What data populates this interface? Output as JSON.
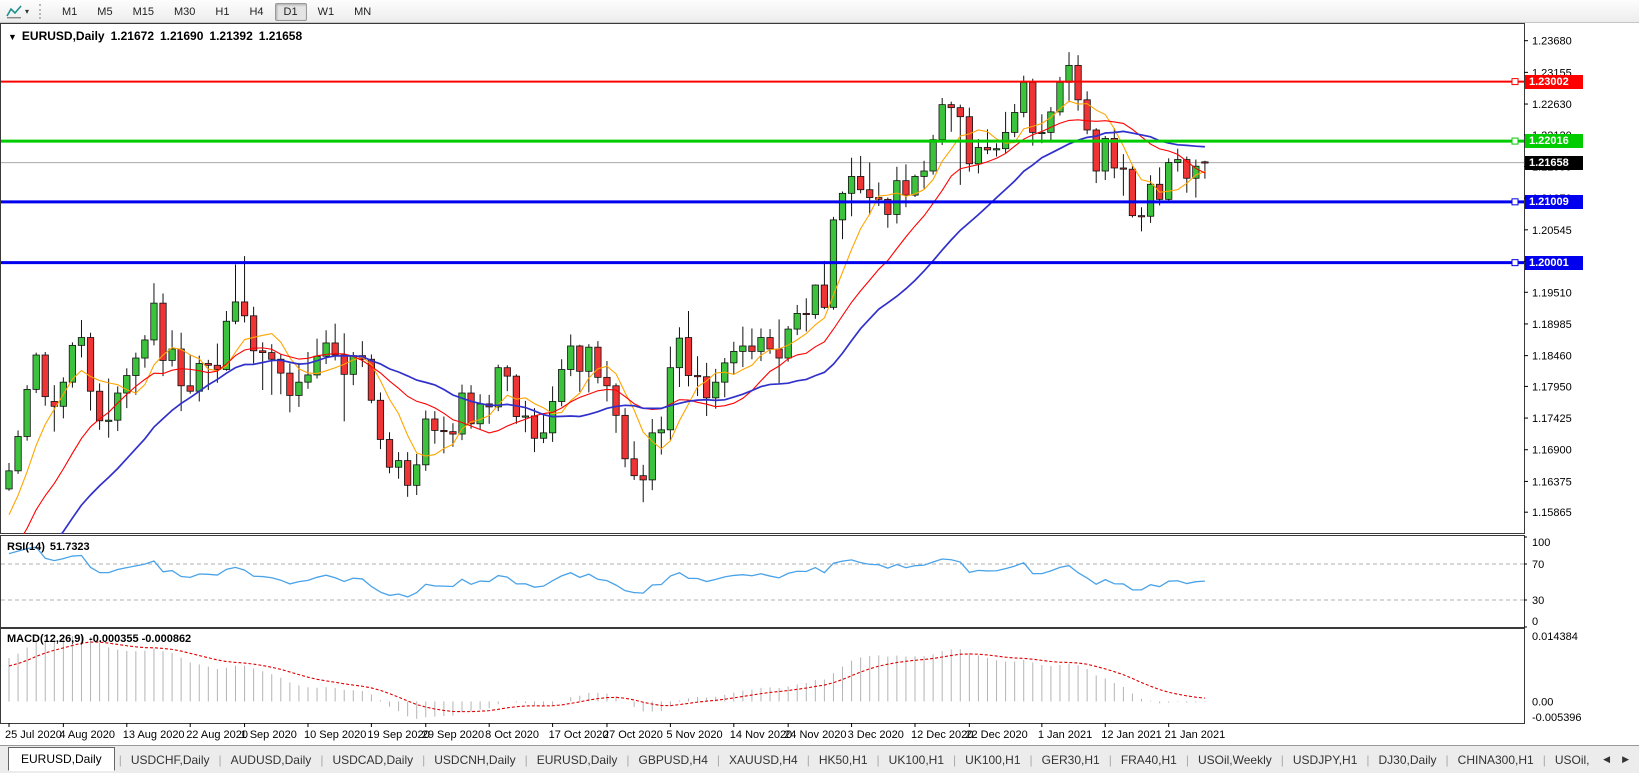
{
  "glyphs": {
    "title_caret": "▼",
    "toolbar_caret": "▾",
    "scroll_left": "◀",
    "scroll_right": "▶",
    "tab_sep": "|"
  },
  "toolbar": {
    "timeframes": [
      {
        "label": "M1",
        "active": false
      },
      {
        "label": "M5",
        "active": false
      },
      {
        "label": "M15",
        "active": false
      },
      {
        "label": "M30",
        "active": false
      },
      {
        "label": "H1",
        "active": false
      },
      {
        "label": "H4",
        "active": false
      },
      {
        "label": "D1",
        "active": true
      },
      {
        "label": "W1",
        "active": false
      },
      {
        "label": "MN",
        "active": false
      }
    ]
  },
  "chart": {
    "title": {
      "symbol": "EURUSD,Daily",
      "open": "1.21672",
      "high": "1.21690",
      "low": "1.21392",
      "close": "1.21658"
    },
    "colors": {
      "up": "#3dc23d",
      "down": "#ee3434",
      "outline": "#111111",
      "current_line": "#aaaaaa"
    },
    "price_axis": {
      "ticks": [
        "1.23680",
        "1.23155",
        "1.22630",
        "1.22120",
        "1.21595",
        "1.21070",
        "1.20545",
        "1.20020",
        "1.19510",
        "1.18985",
        "1.18460",
        "1.17950",
        "1.17425",
        "1.16900",
        "1.16375",
        "1.15865"
      ],
      "current": {
        "value": "1.21658",
        "color": "#000000"
      }
    },
    "hlines": [
      {
        "price": 1.23002,
        "label": "1.23002",
        "color": "#ff0000",
        "width": 2
      },
      {
        "price": 1.22016,
        "label": "1.22016",
        "color": "#00cc00",
        "width": 3
      },
      {
        "price": 1.21009,
        "label": "1.21009",
        "color": "#0000ee",
        "width": 3
      },
      {
        "price": 1.20001,
        "label": "1.20001",
        "color": "#0000ee",
        "width": 3
      }
    ],
    "mas": [
      {
        "period": 6,
        "color": "#ffa500",
        "width": 1.1
      },
      {
        "period": 14,
        "color": "#ff0000",
        "width": 1.1
      },
      {
        "period": 24,
        "color": "#3030cc",
        "width": 1.7
      }
    ],
    "ma_warmup": [
      1.116,
      1.1172,
      1.1158,
      1.1181,
      1.1169,
      1.1192,
      1.1178,
      1.12,
      1.1188,
      1.121,
      1.1196,
      1.1218,
      1.1205,
      1.1226,
      1.1212,
      1.1234,
      1.1221,
      1.1242,
      1.123,
      1.1251,
      1.1238,
      1.1259,
      1.1246,
      1.1267,
      1.1255,
      1.1275,
      1.1262,
      1.1283,
      1.127,
      1.129,
      1.1278,
      1.1298,
      1.1285,
      1.1305,
      1.1292,
      1.1311,
      1.1299,
      1.1316,
      1.1305,
      1.1322,
      1.13,
      1.132,
      1.1342,
      1.133,
      1.136,
      1.1385,
      1.1372,
      1.1405,
      1.143,
      1.1418,
      1.145,
      1.1478,
      1.1465,
      1.1502,
      1.153,
      1.1518,
      1.1555,
      1.1585,
      1.157,
      1.161
    ],
    "candles": [
      [
        1.1625,
        1.1668,
        1.1622,
        1.1655
      ],
      [
        1.1655,
        1.1722,
        1.165,
        1.1712
      ],
      [
        1.1712,
        1.1797,
        1.1705,
        1.179
      ],
      [
        1.179,
        1.1851,
        1.1784,
        1.1847
      ],
      [
        1.1847,
        1.1852,
        1.1763,
        1.1778
      ],
      [
        1.177,
        1.1797,
        1.172,
        1.1762
      ],
      [
        1.1762,
        1.181,
        1.1742,
        1.1802
      ],
      [
        1.1802,
        1.1868,
        1.1793,
        1.1863
      ],
      [
        1.1863,
        1.1905,
        1.1843,
        1.1876
      ],
      [
        1.1876,
        1.1884,
        1.1755,
        1.1787
      ],
      [
        1.1787,
        1.18,
        1.1723,
        1.1738
      ],
      [
        1.1738,
        1.1808,
        1.171,
        1.1739
      ],
      [
        1.1739,
        1.1795,
        1.1721,
        1.1784
      ],
      [
        1.1784,
        1.1825,
        1.1759,
        1.1813
      ],
      [
        1.1813,
        1.1851,
        1.1781,
        1.1842
      ],
      [
        1.1842,
        1.188,
        1.1826,
        1.1872
      ],
      [
        1.1872,
        1.1966,
        1.1863,
        1.1933
      ],
      [
        1.1933,
        1.1949,
        1.1812,
        1.1838
      ],
      [
        1.1838,
        1.1888,
        1.1828,
        1.1857
      ],
      [
        1.1857,
        1.1884,
        1.1754,
        1.1796
      ],
      [
        1.1796,
        1.1848,
        1.1783,
        1.1787
      ],
      [
        1.1787,
        1.1846,
        1.177,
        1.1833
      ],
      [
        1.1833,
        1.1839,
        1.1789,
        1.183
      ],
      [
        1.183,
        1.1866,
        1.1801,
        1.1823
      ],
      [
        1.1823,
        1.192,
        1.1821,
        1.1903
      ],
      [
        1.1903,
        1.1997,
        1.1898,
        1.1935
      ],
      [
        1.1935,
        1.2011,
        1.1901,
        1.1912
      ],
      [
        1.1912,
        1.1927,
        1.1833,
        1.1854
      ],
      [
        1.1854,
        1.1868,
        1.1789,
        1.1851
      ],
      [
        1.1851,
        1.1865,
        1.1781,
        1.184
      ],
      [
        1.184,
        1.1848,
        1.1782,
        1.1817
      ],
      [
        1.1817,
        1.1833,
        1.1752,
        1.178
      ],
      [
        1.178,
        1.1834,
        1.1761,
        1.1802
      ],
      [
        1.1802,
        1.1852,
        1.1791,
        1.1814
      ],
      [
        1.1814,
        1.1874,
        1.1808,
        1.1845
      ],
      [
        1.1845,
        1.1888,
        1.1832,
        1.1867
      ],
      [
        1.1867,
        1.1899,
        1.1838,
        1.1847
      ],
      [
        1.1847,
        1.1883,
        1.1737,
        1.1815
      ],
      [
        1.1815,
        1.1852,
        1.1797,
        1.1846
      ],
      [
        1.1846,
        1.187,
        1.1827,
        1.184
      ],
      [
        1.184,
        1.1848,
        1.1767,
        1.1772
      ],
      [
        1.1772,
        1.1785,
        1.1691,
        1.1707
      ],
      [
        1.1707,
        1.1719,
        1.1651,
        1.1661
      ],
      [
        1.1661,
        1.1686,
        1.1642,
        1.1672
      ],
      [
        1.1672,
        1.1686,
        1.1612,
        1.1631
      ],
      [
        1.1631,
        1.1683,
        1.1615,
        1.1665
      ],
      [
        1.1665,
        1.1755,
        1.1655,
        1.1741
      ],
      [
        1.1741,
        1.1754,
        1.17,
        1.1722
      ],
      [
        1.1722,
        1.1745,
        1.1684,
        1.172
      ],
      [
        1.172,
        1.1734,
        1.1695,
        1.1716
      ],
      [
        1.1716,
        1.1798,
        1.1706,
        1.1784
      ],
      [
        1.1784,
        1.1797,
        1.1725,
        1.1733
      ],
      [
        1.1733,
        1.1782,
        1.1724,
        1.1766
      ],
      [
        1.1766,
        1.1781,
        1.1733,
        1.1761
      ],
      [
        1.1761,
        1.1831,
        1.1754,
        1.1826
      ],
      [
        1.1826,
        1.183,
        1.1787,
        1.1812
      ],
      [
        1.1812,
        1.1815,
        1.1733,
        1.1745
      ],
      [
        1.1745,
        1.1771,
        1.1719,
        1.1746
      ],
      [
        1.1746,
        1.1759,
        1.1686,
        1.1709
      ],
      [
        1.1709,
        1.1747,
        1.1701,
        1.1718
      ],
      [
        1.1718,
        1.1795,
        1.1703,
        1.177
      ],
      [
        1.177,
        1.184,
        1.1762,
        1.1823
      ],
      [
        1.1823,
        1.1881,
        1.1812,
        1.1862
      ],
      [
        1.1862,
        1.1864,
        1.1786,
        1.182
      ],
      [
        1.182,
        1.1865,
        1.1785,
        1.186
      ],
      [
        1.186,
        1.187,
        1.18,
        1.181
      ],
      [
        1.181,
        1.1837,
        1.177,
        1.1796
      ],
      [
        1.1796,
        1.18,
        1.1718,
        1.1747
      ],
      [
        1.1747,
        1.1759,
        1.1661,
        1.1675
      ],
      [
        1.1675,
        1.1704,
        1.164,
        1.1647
      ],
      [
        1.1647,
        1.1665,
        1.1603,
        1.164
      ],
      [
        1.164,
        1.1741,
        1.1623,
        1.1718
      ],
      [
        1.1718,
        1.1745,
        1.1682,
        1.1723
      ],
      [
        1.1723,
        1.1861,
        1.1706,
        1.1826
      ],
      [
        1.1826,
        1.1893,
        1.1794,
        1.1875
      ],
      [
        1.1876,
        1.192,
        1.1795,
        1.1813
      ],
      [
        1.1813,
        1.1845,
        1.1779,
        1.1811
      ],
      [
        1.1811,
        1.1834,
        1.1746,
        1.1776
      ],
      [
        1.1776,
        1.1824,
        1.1758,
        1.1802
      ],
      [
        1.1802,
        1.1842,
        1.1777,
        1.1834
      ],
      [
        1.1834,
        1.1869,
        1.1815,
        1.1853
      ],
      [
        1.1853,
        1.1894,
        1.1827,
        1.1862
      ],
      [
        1.1862,
        1.1891,
        1.184,
        1.1853
      ],
      [
        1.1853,
        1.1891,
        1.1837,
        1.1876
      ],
      [
        1.1876,
        1.189,
        1.1849,
        1.1857
      ],
      [
        1.1857,
        1.1906,
        1.18,
        1.1842
      ],
      [
        1.1842,
        1.1895,
        1.1836,
        1.189
      ],
      [
        1.189,
        1.193,
        1.188,
        1.1916
      ],
      [
        1.1916,
        1.1941,
        1.1886,
        1.1914
      ],
      [
        1.1914,
        1.1964,
        1.1907,
        1.1963
      ],
      [
        1.1963,
        1.2003,
        1.1923,
        1.1926
      ],
      [
        1.1926,
        1.2076,
        1.1922,
        1.2071
      ],
      [
        1.2071,
        1.2118,
        1.2039,
        1.2115
      ],
      [
        1.2115,
        1.2174,
        1.2077,
        1.2143
      ],
      [
        1.2143,
        1.2177,
        1.2115,
        1.2121
      ],
      [
        1.2121,
        1.2166,
        1.2079,
        1.2108
      ],
      [
        1.2108,
        1.2133,
        1.2094,
        1.2105
      ],
      [
        1.2105,
        1.2108,
        1.2058,
        1.208
      ],
      [
        1.208,
        1.2159,
        1.2065,
        1.2136
      ],
      [
        1.2136,
        1.2163,
        1.2092,
        1.2112
      ],
      [
        1.2112,
        1.2146,
        1.2109,
        1.2143
      ],
      [
        1.2143,
        1.2169,
        1.2123,
        1.2152
      ],
      [
        1.2152,
        1.2212,
        1.2146,
        1.2204
      ],
      [
        1.2204,
        1.2273,
        1.2195,
        1.2262
      ],
      [
        1.2262,
        1.2267,
        1.2217,
        1.2257
      ],
      [
        1.2257,
        1.2262,
        1.2129,
        1.2242
      ],
      [
        1.2242,
        1.2257,
        1.2151,
        1.2164
      ],
      [
        1.2164,
        1.2205,
        1.2148,
        1.2191
      ],
      [
        1.2191,
        1.2221,
        1.218,
        1.2187
      ],
      [
        1.2187,
        1.2198,
        1.2176,
        1.2189
      ],
      [
        1.2189,
        1.225,
        1.2181,
        1.2216
      ],
      [
        1.2216,
        1.2263,
        1.2208,
        1.2249
      ],
      [
        1.2249,
        1.231,
        1.2241,
        1.2299
      ],
      [
        1.2299,
        1.2305,
        1.2194,
        1.2216
      ],
      [
        1.2216,
        1.2246,
        1.2198,
        1.2216
      ],
      [
        1.2216,
        1.2258,
        1.2203,
        1.225
      ],
      [
        1.225,
        1.2308,
        1.2244,
        1.2299
      ],
      [
        1.2299,
        1.2349,
        1.2266,
        1.2327
      ],
      [
        1.2327,
        1.2344,
        1.2252,
        1.227
      ],
      [
        1.227,
        1.2284,
        1.2213,
        1.222
      ],
      [
        1.222,
        1.2223,
        1.2132,
        1.2152
      ],
      [
        1.2152,
        1.221,
        1.2137,
        1.2206
      ],
      [
        1.2206,
        1.2223,
        1.214,
        1.2157
      ],
      [
        1.2157,
        1.218,
        1.2111,
        1.2155
      ],
      [
        1.2155,
        1.216,
        1.2075,
        1.2078
      ],
      [
        1.2078,
        1.2092,
        1.2052,
        1.2077
      ],
      [
        1.2077,
        1.2145,
        1.2066,
        1.213
      ],
      [
        1.213,
        1.2158,
        1.2095,
        1.2105
      ],
      [
        1.2105,
        1.2173,
        1.2103,
        1.2166
      ],
      [
        1.2166,
        1.2189,
        1.2151,
        1.2171
      ],
      [
        1.2171,
        1.2176,
        1.2116,
        1.214
      ],
      [
        1.214,
        1.2171,
        1.2108,
        1.216
      ],
      [
        1.21672,
        1.2169,
        1.21392,
        1.21658
      ]
    ],
    "date_ticks": [
      {
        "label": "25 Jul 2020",
        "bar": 0
      },
      {
        "label": "4 Aug 2020",
        "bar": 6
      },
      {
        "label": "13 Aug 2020",
        "bar": 13
      },
      {
        "label": "22 Aug 2020",
        "bar": 20
      },
      {
        "label": "1 Sep 2020",
        "bar": 26
      },
      {
        "label": "10 Sep 2020",
        "bar": 33
      },
      {
        "label": "19 Sep 2020",
        "bar": 40
      },
      {
        "label": "29 Sep 2020",
        "bar": 46
      },
      {
        "label": "8 Oct 2020",
        "bar": 53
      },
      {
        "label": "17 Oct 2020",
        "bar": 60
      },
      {
        "label": "27 Oct 2020",
        "bar": 66
      },
      {
        "label": "5 Nov 2020",
        "bar": 73
      },
      {
        "label": "14 Nov 2020",
        "bar": 80
      },
      {
        "label": "24 Nov 2020",
        "bar": 86
      },
      {
        "label": "3 Dec 2020",
        "bar": 93
      },
      {
        "label": "12 Dec 2020",
        "bar": 100
      },
      {
        "label": "22 Dec 2020",
        "bar": 106
      },
      {
        "label": "1 Jan 2021",
        "bar": 114
      },
      {
        "label": "12 Jan 2021",
        "bar": 121
      },
      {
        "label": "21 Jan 2021",
        "bar": 128
      }
    ]
  },
  "rsi": {
    "label": "RSI(14)",
    "value": "51.7323",
    "period": 14,
    "color": "#4aa3e8",
    "levels": [
      70,
      30
    ],
    "axis": [
      "100",
      "70",
      "30",
      "0"
    ]
  },
  "macd": {
    "label": "MACD(12,26,9)",
    "values": "-0.000355 -0.000862",
    "fast": 12,
    "slow": 26,
    "signal": 9,
    "axis_max": "0.014384",
    "axis_zero": "0.00",
    "axis_min": "-0.005396",
    "hist_color": "#b4b4b4",
    "signal_color": "#e00000"
  },
  "tabs": {
    "items": [
      {
        "label": "EURUSD,Daily",
        "active": true
      },
      {
        "label": "USDCHF,Daily",
        "active": false
      },
      {
        "label": "AUDUSD,Daily",
        "active": false
      },
      {
        "label": "USDCAD,Daily",
        "active": false
      },
      {
        "label": "USDCNH,Daily",
        "active": false
      },
      {
        "label": "EURUSD,Daily",
        "active": false
      },
      {
        "label": "GBPUSD,H4",
        "active": false
      },
      {
        "label": "XAUUSD,H4",
        "active": false
      },
      {
        "label": "HK50,H1",
        "active": false
      },
      {
        "label": "UK100,H1",
        "active": false
      },
      {
        "label": "UK100,H1",
        "active": false
      },
      {
        "label": "GER30,H1",
        "active": false
      },
      {
        "label": "FRA40,H1",
        "active": false
      },
      {
        "label": "USOil,Weekly",
        "active": false
      },
      {
        "label": "USDJPY,H1",
        "active": false
      },
      {
        "label": "DJ30,Daily",
        "active": false
      },
      {
        "label": "CHINA300,H1",
        "active": false
      },
      {
        "label": "USOil,",
        "active": false
      }
    ]
  }
}
